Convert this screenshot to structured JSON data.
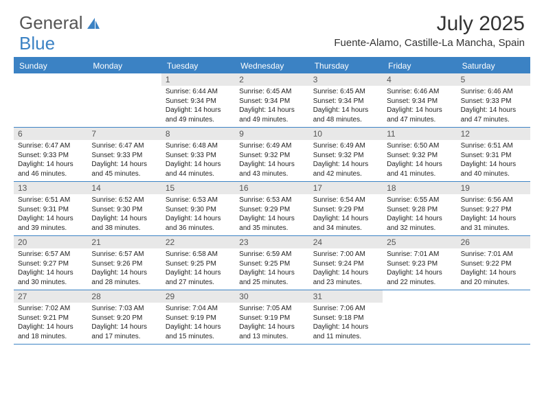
{
  "brand": {
    "part1": "General",
    "part2": "Blue"
  },
  "title": "July 2025",
  "location": "Fuente-Alamo, Castille-La Mancha, Spain",
  "colors": {
    "accent": "#3b82c4",
    "daynum_bg": "#e8e8e8",
    "text": "#333333",
    "cell_text": "#222222"
  },
  "day_headers": [
    "Sunday",
    "Monday",
    "Tuesday",
    "Wednesday",
    "Thursday",
    "Friday",
    "Saturday"
  ],
  "weeks": [
    [
      {
        "n": "",
        "sr": "",
        "ss": "",
        "dl": ""
      },
      {
        "n": "",
        "sr": "",
        "ss": "",
        "dl": ""
      },
      {
        "n": "1",
        "sr": "Sunrise: 6:44 AM",
        "ss": "Sunset: 9:34 PM",
        "dl": "Daylight: 14 hours and 49 minutes."
      },
      {
        "n": "2",
        "sr": "Sunrise: 6:45 AM",
        "ss": "Sunset: 9:34 PM",
        "dl": "Daylight: 14 hours and 49 minutes."
      },
      {
        "n": "3",
        "sr": "Sunrise: 6:45 AM",
        "ss": "Sunset: 9:34 PM",
        "dl": "Daylight: 14 hours and 48 minutes."
      },
      {
        "n": "4",
        "sr": "Sunrise: 6:46 AM",
        "ss": "Sunset: 9:34 PM",
        "dl": "Daylight: 14 hours and 47 minutes."
      },
      {
        "n": "5",
        "sr": "Sunrise: 6:46 AM",
        "ss": "Sunset: 9:33 PM",
        "dl": "Daylight: 14 hours and 47 minutes."
      }
    ],
    [
      {
        "n": "6",
        "sr": "Sunrise: 6:47 AM",
        "ss": "Sunset: 9:33 PM",
        "dl": "Daylight: 14 hours and 46 minutes."
      },
      {
        "n": "7",
        "sr": "Sunrise: 6:47 AM",
        "ss": "Sunset: 9:33 PM",
        "dl": "Daylight: 14 hours and 45 minutes."
      },
      {
        "n": "8",
        "sr": "Sunrise: 6:48 AM",
        "ss": "Sunset: 9:33 PM",
        "dl": "Daylight: 14 hours and 44 minutes."
      },
      {
        "n": "9",
        "sr": "Sunrise: 6:49 AM",
        "ss": "Sunset: 9:32 PM",
        "dl": "Daylight: 14 hours and 43 minutes."
      },
      {
        "n": "10",
        "sr": "Sunrise: 6:49 AM",
        "ss": "Sunset: 9:32 PM",
        "dl": "Daylight: 14 hours and 42 minutes."
      },
      {
        "n": "11",
        "sr": "Sunrise: 6:50 AM",
        "ss": "Sunset: 9:32 PM",
        "dl": "Daylight: 14 hours and 41 minutes."
      },
      {
        "n": "12",
        "sr": "Sunrise: 6:51 AM",
        "ss": "Sunset: 9:31 PM",
        "dl": "Daylight: 14 hours and 40 minutes."
      }
    ],
    [
      {
        "n": "13",
        "sr": "Sunrise: 6:51 AM",
        "ss": "Sunset: 9:31 PM",
        "dl": "Daylight: 14 hours and 39 minutes."
      },
      {
        "n": "14",
        "sr": "Sunrise: 6:52 AM",
        "ss": "Sunset: 9:30 PM",
        "dl": "Daylight: 14 hours and 38 minutes."
      },
      {
        "n": "15",
        "sr": "Sunrise: 6:53 AM",
        "ss": "Sunset: 9:30 PM",
        "dl": "Daylight: 14 hours and 36 minutes."
      },
      {
        "n": "16",
        "sr": "Sunrise: 6:53 AM",
        "ss": "Sunset: 9:29 PM",
        "dl": "Daylight: 14 hours and 35 minutes."
      },
      {
        "n": "17",
        "sr": "Sunrise: 6:54 AM",
        "ss": "Sunset: 9:29 PM",
        "dl": "Daylight: 14 hours and 34 minutes."
      },
      {
        "n": "18",
        "sr": "Sunrise: 6:55 AM",
        "ss": "Sunset: 9:28 PM",
        "dl": "Daylight: 14 hours and 32 minutes."
      },
      {
        "n": "19",
        "sr": "Sunrise: 6:56 AM",
        "ss": "Sunset: 9:27 PM",
        "dl": "Daylight: 14 hours and 31 minutes."
      }
    ],
    [
      {
        "n": "20",
        "sr": "Sunrise: 6:57 AM",
        "ss": "Sunset: 9:27 PM",
        "dl": "Daylight: 14 hours and 30 minutes."
      },
      {
        "n": "21",
        "sr": "Sunrise: 6:57 AM",
        "ss": "Sunset: 9:26 PM",
        "dl": "Daylight: 14 hours and 28 minutes."
      },
      {
        "n": "22",
        "sr": "Sunrise: 6:58 AM",
        "ss": "Sunset: 9:25 PM",
        "dl": "Daylight: 14 hours and 27 minutes."
      },
      {
        "n": "23",
        "sr": "Sunrise: 6:59 AM",
        "ss": "Sunset: 9:25 PM",
        "dl": "Daylight: 14 hours and 25 minutes."
      },
      {
        "n": "24",
        "sr": "Sunrise: 7:00 AM",
        "ss": "Sunset: 9:24 PM",
        "dl": "Daylight: 14 hours and 23 minutes."
      },
      {
        "n": "25",
        "sr": "Sunrise: 7:01 AM",
        "ss": "Sunset: 9:23 PM",
        "dl": "Daylight: 14 hours and 22 minutes."
      },
      {
        "n": "26",
        "sr": "Sunrise: 7:01 AM",
        "ss": "Sunset: 9:22 PM",
        "dl": "Daylight: 14 hours and 20 minutes."
      }
    ],
    [
      {
        "n": "27",
        "sr": "Sunrise: 7:02 AM",
        "ss": "Sunset: 9:21 PM",
        "dl": "Daylight: 14 hours and 18 minutes."
      },
      {
        "n": "28",
        "sr": "Sunrise: 7:03 AM",
        "ss": "Sunset: 9:20 PM",
        "dl": "Daylight: 14 hours and 17 minutes."
      },
      {
        "n": "29",
        "sr": "Sunrise: 7:04 AM",
        "ss": "Sunset: 9:19 PM",
        "dl": "Daylight: 14 hours and 15 minutes."
      },
      {
        "n": "30",
        "sr": "Sunrise: 7:05 AM",
        "ss": "Sunset: 9:19 PM",
        "dl": "Daylight: 14 hours and 13 minutes."
      },
      {
        "n": "31",
        "sr": "Sunrise: 7:06 AM",
        "ss": "Sunset: 9:18 PM",
        "dl": "Daylight: 14 hours and 11 minutes."
      },
      {
        "n": "",
        "sr": "",
        "ss": "",
        "dl": ""
      },
      {
        "n": "",
        "sr": "",
        "ss": "",
        "dl": ""
      }
    ]
  ]
}
